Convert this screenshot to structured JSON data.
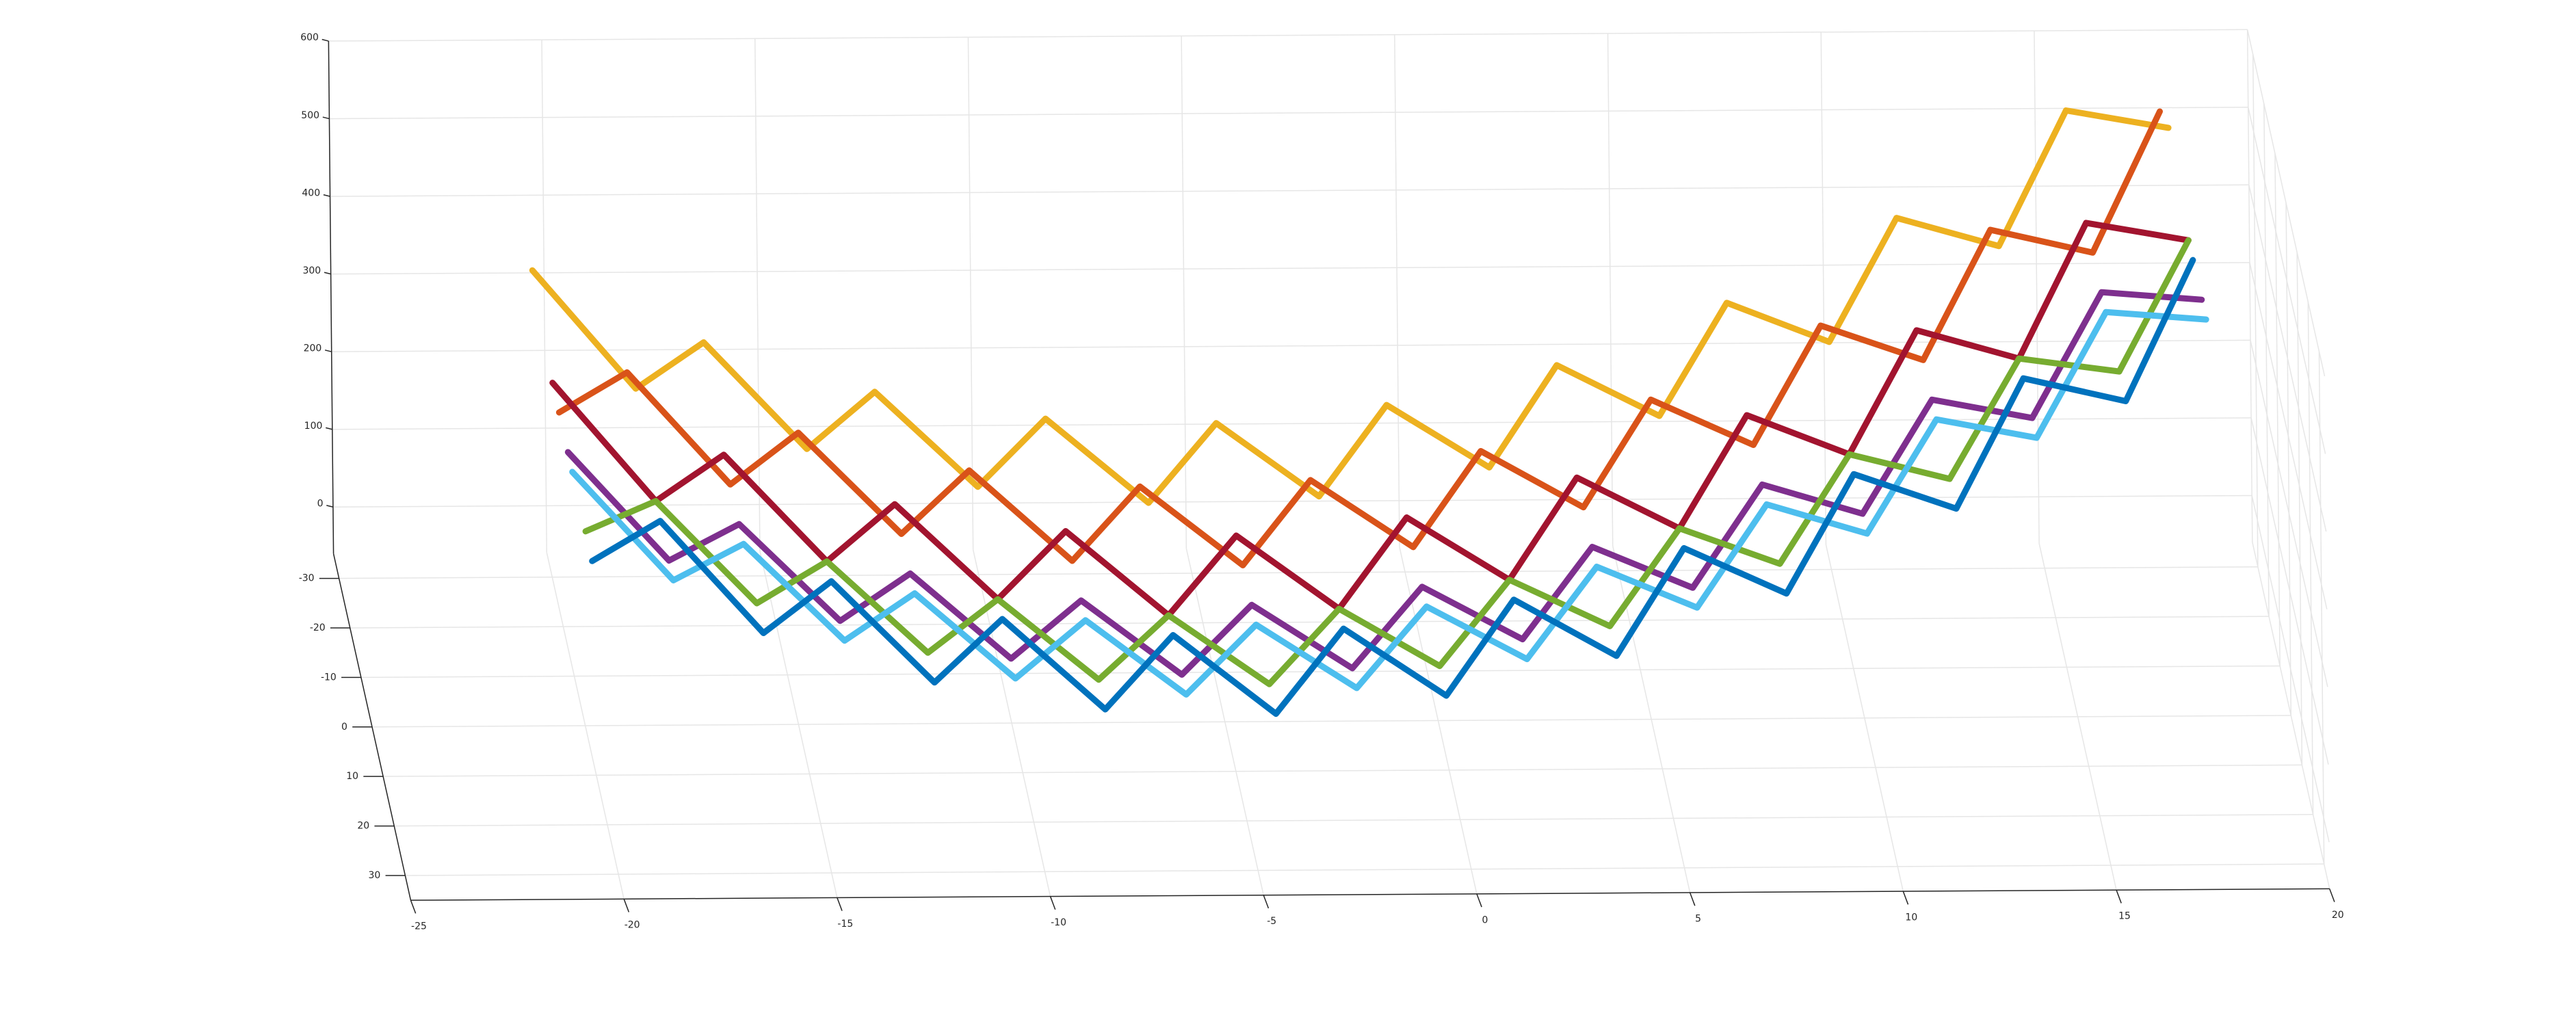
{
  "chart_data": {
    "type": "line3d",
    "xlim": [
      -25,
      20
    ],
    "xticks": [
      -25,
      -20,
      -15,
      -10,
      -5,
      0,
      5,
      10,
      15,
      20
    ],
    "ylim": [
      -35,
      35
    ],
    "yticks": [
      -30,
      -20,
      -10,
      0,
      10,
      20,
      30
    ],
    "zlim": [
      -60,
      600
    ],
    "zticks": [
      0,
      100,
      200,
      300,
      400,
      500,
      600
    ],
    "grid": true,
    "x": [
      -20,
      -18,
      -16,
      -14,
      -12,
      -10,
      -8,
      -6,
      -4,
      -2,
      0,
      2,
      4,
      6,
      8,
      10,
      12,
      14,
      16,
      18
    ],
    "series": [
      {
        "color": "#EDB120",
        "y": [
          -46,
          -30,
          -46,
          -30,
          -46,
          -30,
          -46,
          -30,
          -46,
          -30,
          -46,
          -30,
          -46,
          -30,
          -46,
          -30,
          -46,
          -30,
          -46,
          -30
        ],
        "values": [
          233,
          182,
          139,
          103,
          74,
          53,
          38,
          31,
          31,
          38,
          53,
          74,
          103,
          139,
          182,
          233,
          290,
          355,
          427,
          506
        ]
      },
      {
        "color": "#D95319",
        "y": [
          -22,
          -38,
          -22,
          -38,
          -22,
          -38,
          -22,
          -38,
          -22,
          -38,
          -22,
          -38,
          -22,
          -38,
          -22,
          -38,
          -22,
          -38,
          -22,
          -38
        ],
        "values": [
          203,
          152,
          109,
          73,
          44,
          23,
          8,
          1,
          1,
          8,
          23,
          44,
          73,
          109,
          152,
          203,
          260,
          325,
          397,
          476
        ]
      },
      {
        "color": "#A2142F",
        "y": [
          -28,
          -12,
          -28,
          -12,
          -28,
          -12,
          -28,
          -12,
          -28,
          -12,
          -28,
          -12,
          -28,
          -12,
          -28,
          -12,
          -28,
          -12,
          -28,
          -12
        ],
        "values": [
          203,
          152,
          109,
          73,
          44,
          23,
          8,
          1,
          1,
          8,
          23,
          44,
          73,
          109,
          152,
          203,
          260,
          325,
          397,
          476
        ]
      },
      {
        "color": "#7E2F8E",
        "y": [
          -14,
          0,
          -14,
          0,
          -14,
          0,
          -14,
          0,
          -14,
          0,
          -14,
          0,
          -14,
          0,
          -14,
          0,
          -14,
          0,
          -14,
          0
        ],
        "values": [
          203,
          152,
          109,
          73,
          44,
          23,
          8,
          1,
          1,
          8,
          23,
          44,
          73,
          109,
          152,
          203,
          260,
          325,
          397,
          476
        ]
      },
      {
        "color": "#77AC30",
        "y": [
          2,
          -12,
          2,
          -12,
          2,
          -12,
          2,
          -12,
          2,
          -12,
          2,
          -12,
          2,
          -12,
          2,
          -12,
          2,
          -12,
          2,
          -12
        ],
        "values": [
          203,
          152,
          109,
          73,
          44,
          23,
          8,
          1,
          1,
          8,
          23,
          44,
          73,
          109,
          152,
          203,
          260,
          325,
          397,
          476
        ]
      },
      {
        "color": "#4DBEEE",
        "y": [
          -10,
          4,
          -10,
          4,
          -10,
          4,
          -10,
          4,
          -10,
          4,
          -10,
          4,
          -10,
          4,
          -10,
          4,
          -10,
          4,
          -10,
          4
        ],
        "values": [
          203,
          152,
          109,
          73,
          44,
          23,
          8,
          1,
          1,
          8,
          23,
          44,
          73,
          109,
          152,
          203,
          260,
          325,
          397,
          476
        ]
      },
      {
        "color": "#0072BD",
        "y": [
          8,
          -8,
          8,
          -8,
          8,
          -8,
          8,
          -8,
          8,
          -8,
          8,
          -8,
          8,
          -8,
          8,
          -8,
          8,
          -8,
          8,
          -8
        ],
        "values": [
          203,
          152,
          109,
          73,
          44,
          23,
          8,
          1,
          1,
          8,
          23,
          44,
          73,
          109,
          152,
          203,
          260,
          325,
          397,
          476
        ]
      }
    ]
  }
}
